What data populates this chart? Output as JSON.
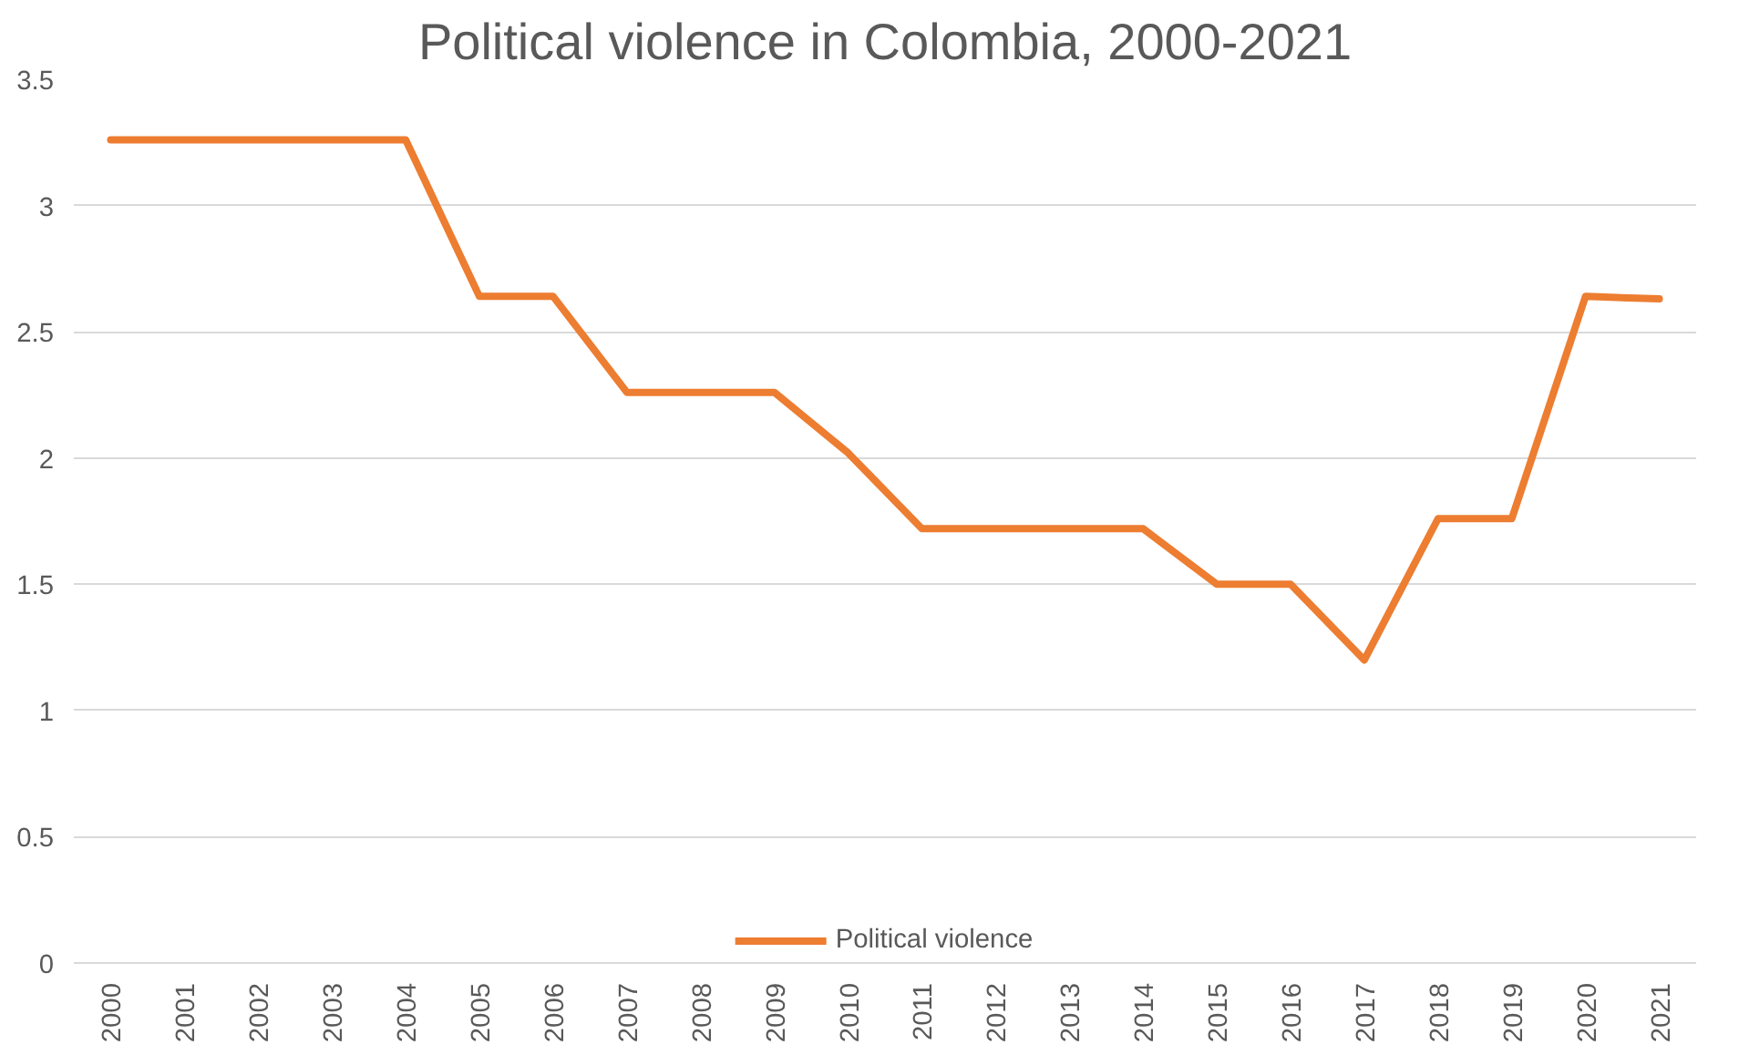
{
  "chart_data": {
    "type": "line",
    "title": "Political violence in Colombia, 2000-2021",
    "categories": [
      "2000",
      "2001",
      "2002",
      "2003",
      "2004",
      "2005",
      "2006",
      "2007",
      "2008",
      "2009",
      "2010",
      "2011",
      "2012",
      "2013",
      "2014",
      "2015",
      "2016",
      "2017",
      "2018",
      "2019",
      "2020",
      "2021"
    ],
    "series": [
      {
        "name": "Political violence",
        "color": "#ed7d31",
        "values": [
          3.26,
          3.26,
          3.26,
          3.26,
          3.26,
          2.64,
          2.64,
          2.26,
          2.26,
          2.26,
          2.02,
          1.72,
          1.72,
          1.72,
          1.72,
          1.5,
          1.5,
          1.2,
          1.76,
          1.76,
          2.64,
          2.63
        ]
      }
    ],
    "ylim": [
      0,
      3.5
    ],
    "yticks": [
      0,
      0.5,
      1,
      1.5,
      2,
      2.5,
      3,
      3.5
    ],
    "grid": "y",
    "legend": "bottom"
  }
}
